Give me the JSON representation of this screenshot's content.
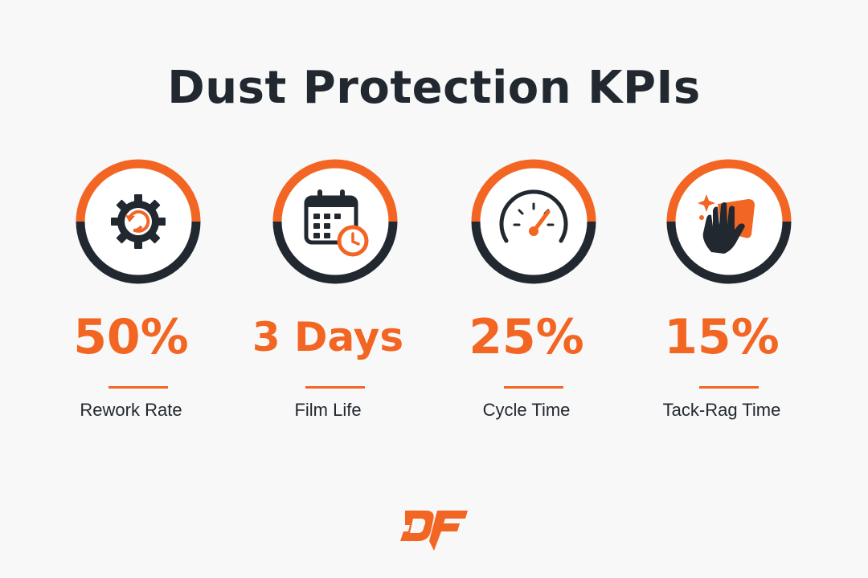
{
  "title": "Dust Protection KPIs",
  "colors": {
    "accent": "#f26522",
    "dark": "#222830",
    "background": "#f8f8f8"
  },
  "kpis": [
    {
      "value": "50%",
      "label": "Rework Rate",
      "icon": "gear-refresh-icon"
    },
    {
      "value": "3 Days",
      "label": "Film Life",
      "icon": "calendar-clock-icon"
    },
    {
      "value": "25%",
      "label": "Cycle Time",
      "icon": "speedometer-icon"
    },
    {
      "value": "15%",
      "label": "Tack-Rag Time",
      "icon": "hand-wipe-icon"
    }
  ],
  "logo": {
    "text": "DF"
  }
}
